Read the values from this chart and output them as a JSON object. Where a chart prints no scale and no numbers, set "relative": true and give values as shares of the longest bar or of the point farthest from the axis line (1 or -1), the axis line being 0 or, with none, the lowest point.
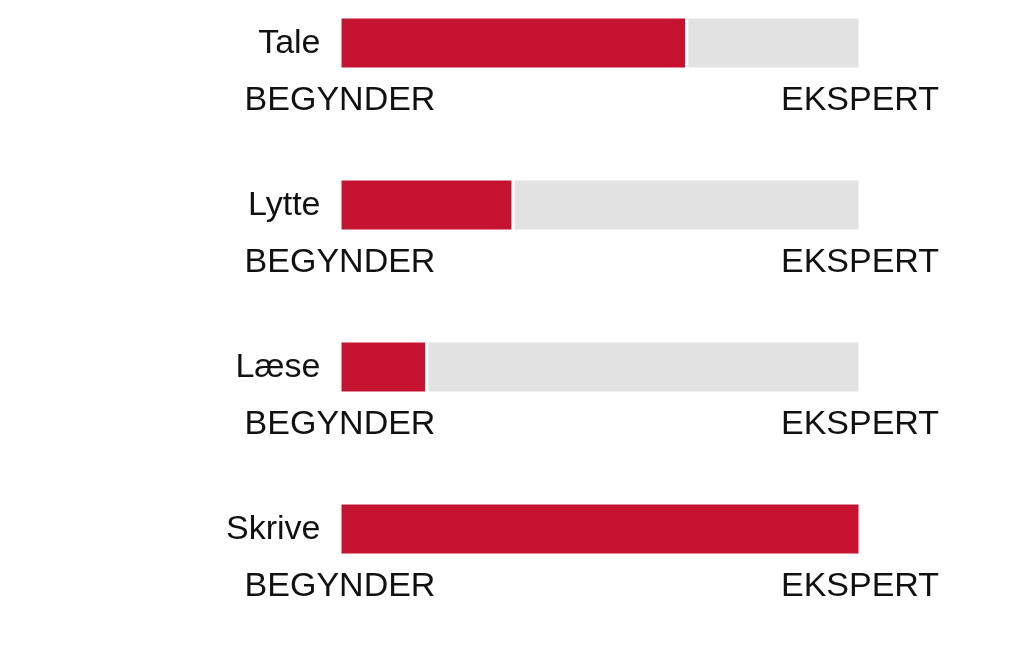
{
  "chart_data": [
    {
      "type": "bar",
      "orientation": "horizontal",
      "stacked": true,
      "relative": true,
      "categories": [
        "Tale"
      ],
      "series": [
        {
          "color": "#c41230",
          "values": [
            0.667
          ]
        },
        {
          "color": "#e2e2e2",
          "values": [
            0.333
          ]
        }
      ],
      "annotations": [
        "BEGYNDER",
        "EKSPERT"
      ]
    },
    {
      "type": "bar",
      "orientation": "horizontal",
      "stacked": true,
      "relative": true,
      "categories": [
        "Lytte"
      ],
      "series": [
        {
          "color": "#c41230",
          "values": [
            0.333
          ]
        },
        {
          "color": "#e2e2e2",
          "values": [
            0.667
          ]
        }
      ],
      "annotations": [
        "BEGYNDER",
        "EKSPERT"
      ]
    },
    {
      "type": "bar",
      "orientation": "horizontal",
      "stacked": true,
      "relative": true,
      "categories": [
        "Læse"
      ],
      "series": [
        {
          "color": "#c41230",
          "values": [
            0.167
          ]
        },
        {
          "color": "#e2e2e2",
          "values": [
            0.833
          ]
        }
      ],
      "annotations": [
        "BEGYNDER",
        "EKSPERT"
      ]
    },
    {
      "type": "bar",
      "orientation": "horizontal",
      "stacked": true,
      "relative": true,
      "categories": [
        "Skrive"
      ],
      "series": [
        {
          "color": "#c41230",
          "values": [
            1
          ]
        },
        {
          "color": "#e2e2e2",
          "values": [
            null
          ]
        }
      ],
      "annotations": [
        "BEGYNDER",
        "EKSPERT"
      ]
    }
  ]
}
